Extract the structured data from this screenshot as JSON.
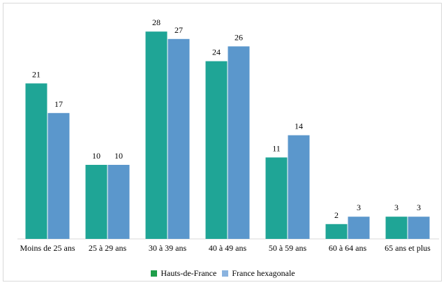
{
  "chart_data": {
    "type": "bar",
    "categories": [
      "Moins de 25 ans",
      "25 à 29 ans",
      "30 à 39 ans",
      "40 à 49 ans",
      "50 à 59 ans",
      "60 à 64 ans",
      "65 ans et plus"
    ],
    "series": [
      {
        "name": "Hauts-de-France",
        "values": [
          21,
          10,
          28,
          24,
          11,
          2,
          3
        ],
        "color": "#1fa596",
        "legend_color": "#1e9e4a"
      },
      {
        "name": "France hexagonale",
        "values": [
          17,
          10,
          27,
          26,
          14,
          3,
          3
        ],
        "color": "#5b97cc",
        "legend_color": "#8ab3df"
      }
    ],
    "ylim": [
      0,
      30
    ],
    "grid": false,
    "data_labels": true,
    "legend_position": "bottom"
  }
}
